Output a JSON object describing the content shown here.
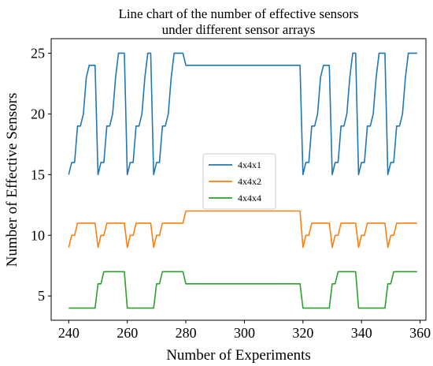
{
  "chart_data": {
    "type": "line",
    "title": [
      "Line chart of the number of effective sensors",
      "under different sensor arrays"
    ],
    "xlabel": "Number of Experiments",
    "ylabel": "Number of Effective Sensors",
    "xlim": [
      234,
      362
    ],
    "ylim": [
      3,
      26.2
    ],
    "xticks": [
      240,
      260,
      280,
      300,
      320,
      340,
      360
    ],
    "yticks": [
      5,
      10,
      15,
      20,
      25
    ],
    "grid": false,
    "legend": "center",
    "series": [
      {
        "name": "4x4x1",
        "color": "#1f77b4",
        "x": [
          240,
          241,
          242,
          243,
          244,
          245,
          246,
          247,
          248,
          249,
          250,
          251,
          252,
          253,
          254,
          255,
          256,
          257,
          258,
          259,
          260,
          261,
          262,
          263,
          264,
          265,
          266,
          267,
          268,
          269,
          270,
          271,
          272,
          273,
          274,
          275,
          276,
          277,
          278,
          279,
          280,
          319,
          320,
          321,
          322,
          323,
          324,
          325,
          326,
          327,
          328,
          329,
          330,
          331,
          332,
          333,
          334,
          335,
          336,
          337,
          338,
          339,
          340,
          341,
          342,
          343,
          344,
          345,
          346,
          347,
          348,
          349,
          350,
          351,
          352,
          353,
          354,
          355,
          356,
          357,
          358,
          359
        ],
        "y": [
          15,
          16,
          16,
          19,
          19,
          20,
          23,
          24,
          24,
          24,
          15,
          16,
          16,
          19,
          19,
          20,
          23,
          25,
          25,
          25,
          15,
          16,
          16,
          19,
          19,
          20,
          23,
          25,
          25,
          15,
          16,
          16,
          19,
          19,
          20,
          23,
          25,
          25,
          25,
          25,
          24,
          24,
          15,
          16,
          16,
          19,
          19,
          20,
          23,
          24,
          24,
          24,
          15,
          16,
          16,
          19,
          19,
          20,
          23,
          25,
          25,
          15,
          16,
          16,
          19,
          19,
          20,
          23,
          25,
          25,
          25,
          15,
          16,
          16,
          19,
          19,
          20,
          23,
          25,
          25,
          25,
          25
        ]
      },
      {
        "name": "4x4x2",
        "color": "#ff7f0e",
        "x": [
          240,
          241,
          242,
          243,
          244,
          245,
          246,
          247,
          248,
          249,
          250,
          251,
          252,
          253,
          254,
          255,
          256,
          257,
          258,
          259,
          260,
          261,
          262,
          263,
          264,
          265,
          266,
          267,
          268,
          269,
          270,
          271,
          272,
          273,
          274,
          275,
          276,
          277,
          278,
          279,
          280,
          319,
          320,
          321,
          322,
          323,
          324,
          325,
          326,
          327,
          328,
          329,
          330,
          331,
          332,
          333,
          334,
          335,
          336,
          337,
          338,
          339,
          340,
          341,
          342,
          343,
          344,
          345,
          346,
          347,
          348,
          349,
          350,
          351,
          352,
          353,
          354,
          355,
          356,
          357,
          358,
          359
        ],
        "y": [
          9,
          10,
          10,
          11,
          11,
          11,
          11,
          11,
          11,
          11,
          9,
          10,
          10,
          11,
          11,
          11,
          11,
          11,
          11,
          11,
          9,
          10,
          10,
          11,
          11,
          11,
          11,
          11,
          11,
          9,
          10,
          10,
          11,
          11,
          11,
          11,
          11,
          11,
          11,
          11,
          12,
          12,
          9,
          10,
          10,
          11,
          11,
          11,
          11,
          11,
          11,
          11,
          9,
          10,
          10,
          11,
          11,
          11,
          11,
          11,
          11,
          9,
          10,
          10,
          11,
          11,
          11,
          11,
          11,
          11,
          11,
          9,
          10,
          10,
          11,
          11,
          11,
          11,
          11,
          11,
          11,
          11
        ]
      },
      {
        "name": "4x4x4",
        "color": "#2ca02c",
        "x": [
          240,
          241,
          242,
          243,
          244,
          245,
          246,
          247,
          248,
          249,
          250,
          251,
          252,
          253,
          254,
          255,
          256,
          257,
          258,
          259,
          260,
          261,
          262,
          263,
          264,
          265,
          266,
          267,
          268,
          269,
          270,
          271,
          272,
          273,
          274,
          275,
          276,
          277,
          278,
          279,
          280,
          319,
          320,
          321,
          322,
          323,
          324,
          325,
          326,
          327,
          328,
          329,
          330,
          331,
          332,
          333,
          334,
          335,
          336,
          337,
          338,
          339,
          340,
          341,
          342,
          343,
          344,
          345,
          346,
          347,
          348,
          349,
          350,
          351,
          352,
          353,
          354,
          355,
          356,
          357,
          358,
          359
        ],
        "y": [
          4,
          4,
          4,
          4,
          4,
          4,
          4,
          4,
          4,
          4,
          6,
          6,
          7,
          7,
          7,
          7,
          7,
          7,
          7,
          7,
          4,
          4,
          4,
          4,
          4,
          4,
          4,
          4,
          4,
          4,
          6,
          6,
          7,
          7,
          7,
          7,
          7,
          7,
          7,
          7,
          6,
          6,
          4,
          4,
          4,
          4,
          4,
          4,
          4,
          4,
          4,
          4,
          6,
          6,
          7,
          7,
          7,
          7,
          7,
          7,
          7,
          4,
          4,
          4,
          4,
          4,
          4,
          4,
          4,
          4,
          4,
          6,
          6,
          7,
          7,
          7,
          7,
          7,
          7,
          7,
          7,
          7
        ]
      }
    ]
  }
}
